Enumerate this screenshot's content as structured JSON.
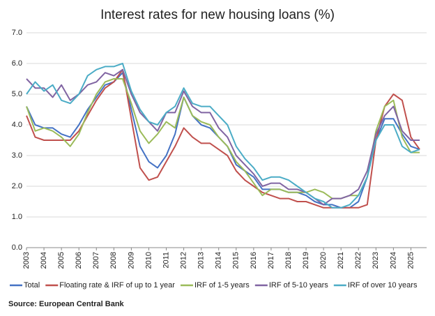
{
  "chart_data": {
    "type": "line",
    "title": "Interest rates for new housing loans (%)",
    "source": "Source:  European Central Bank",
    "x": [
      2003,
      2003.5,
      2004,
      2004.5,
      2005,
      2005.5,
      2006,
      2006.5,
      2007,
      2007.5,
      2008,
      2008.5,
      2009,
      2009.5,
      2010,
      2010.5,
      2011,
      2011.5,
      2012,
      2012.5,
      2013,
      2013.5,
      2014,
      2014.5,
      2015,
      2015.5,
      2016,
      2016.5,
      2017,
      2017.5,
      2018,
      2018.5,
      2019,
      2019.5,
      2020,
      2020.5,
      2021,
      2021.5,
      2022,
      2022.5,
      2023,
      2023.5,
      2024,
      2024.5,
      2025,
      2025.5
    ],
    "xlim": [
      2003,
      2025.9
    ],
    "xticks": [
      2003,
      2004,
      2005,
      2006,
      2007,
      2008,
      2009,
      2010,
      2011,
      2012,
      2013,
      2014,
      2015,
      2016,
      2017,
      2018,
      2019,
      2020,
      2021,
      2022,
      2023,
      2024,
      2025
    ],
    "ylim": [
      0,
      7
    ],
    "yticks": [
      {
        "value": 0,
        "label": "0.0"
      },
      {
        "value": 1,
        "label": "1.0"
      },
      {
        "value": 2,
        "label": "2.0"
      },
      {
        "value": 3,
        "label": "3.0"
      },
      {
        "value": 4,
        "label": "4.0"
      },
      {
        "value": 5,
        "label": "5.0"
      },
      {
        "value": 6,
        "label": "6.0"
      },
      {
        "value": 7,
        "label": "7.0"
      }
    ],
    "grid": true,
    "legend": "bottom",
    "series": [
      {
        "name": "Total",
        "color": "#4472c4",
        "values": [
          4.6,
          4.0,
          3.9,
          3.9,
          3.7,
          3.6,
          4.0,
          4.5,
          4.9,
          5.3,
          5.4,
          5.7,
          4.5,
          3.3,
          2.8,
          2.6,
          3.0,
          3.7,
          4.9,
          4.3,
          4.0,
          3.9,
          3.6,
          3.3,
          2.7,
          2.5,
          2.3,
          1.9,
          1.9,
          1.9,
          1.8,
          1.8,
          1.7,
          1.5,
          1.4,
          1.4,
          1.3,
          1.3,
          1.5,
          2.3,
          3.5,
          4.2,
          4.2,
          3.7,
          3.3,
          3.2
        ]
      },
      {
        "name": "Floating rate & IRF of up to 1 year",
        "color": "#c0504d",
        "values": [
          4.3,
          3.6,
          3.5,
          3.5,
          3.5,
          3.5,
          3.8,
          4.3,
          4.8,
          5.2,
          5.4,
          5.8,
          4.2,
          2.6,
          2.2,
          2.3,
          2.8,
          3.3,
          3.9,
          3.6,
          3.4,
          3.4,
          3.2,
          3.0,
          2.5,
          2.2,
          2.0,
          1.8,
          1.7,
          1.6,
          1.6,
          1.5,
          1.5,
          1.4,
          1.3,
          1.3,
          1.3,
          1.3,
          1.3,
          1.4,
          3.5,
          4.6,
          5.0,
          4.8,
          3.6,
          3.2
        ]
      },
      {
        "name": "IRF of 1-5 years",
        "color": "#9bbb59",
        "values": [
          4.6,
          3.8,
          3.9,
          3.8,
          3.6,
          3.3,
          3.7,
          4.4,
          5.0,
          5.4,
          5.5,
          5.5,
          4.7,
          3.8,
          3.4,
          3.7,
          4.1,
          3.9,
          4.9,
          4.3,
          4.1,
          4.0,
          3.6,
          3.3,
          2.8,
          2.5,
          2.1,
          1.7,
          1.9,
          1.9,
          1.8,
          1.8,
          1.8,
          1.9,
          1.8,
          1.6,
          1.6,
          1.7,
          1.7,
          2.3,
          3.8,
          4.6,
          4.8,
          3.6,
          3.1,
          3.1
        ]
      },
      {
        "name": "IRF of 5-10 years",
        "color": "#8064a2",
        "values": [
          5.5,
          5.2,
          5.2,
          4.9,
          5.3,
          4.8,
          5.0,
          5.3,
          5.4,
          5.7,
          5.6,
          5.8,
          5.0,
          4.4,
          4.1,
          3.8,
          4.4,
          4.4,
          5.1,
          4.6,
          4.4,
          4.4,
          3.9,
          3.6,
          3.0,
          2.7,
          2.4,
          2.0,
          2.1,
          2.1,
          1.9,
          1.9,
          1.8,
          1.6,
          1.4,
          1.6,
          1.6,
          1.7,
          1.9,
          2.5,
          3.7,
          4.3,
          4.6,
          3.8,
          3.5,
          3.5
        ]
      },
      {
        "name": "IRF of over 10 years",
        "color": "#4bacc6",
        "values": [
          5.0,
          5.4,
          5.1,
          5.3,
          4.8,
          4.7,
          5.0,
          5.6,
          5.8,
          5.9,
          5.9,
          6.0,
          5.1,
          4.5,
          4.1,
          4.0,
          4.4,
          4.6,
          5.2,
          4.7,
          4.6,
          4.6,
          4.3,
          4.0,
          3.3,
          2.9,
          2.6,
          2.2,
          2.3,
          2.3,
          2.2,
          2.0,
          1.8,
          1.6,
          1.5,
          1.3,
          1.3,
          1.4,
          1.7,
          2.3,
          3.5,
          4.0,
          4.0,
          3.3,
          3.1,
          3.2
        ]
      }
    ]
  }
}
